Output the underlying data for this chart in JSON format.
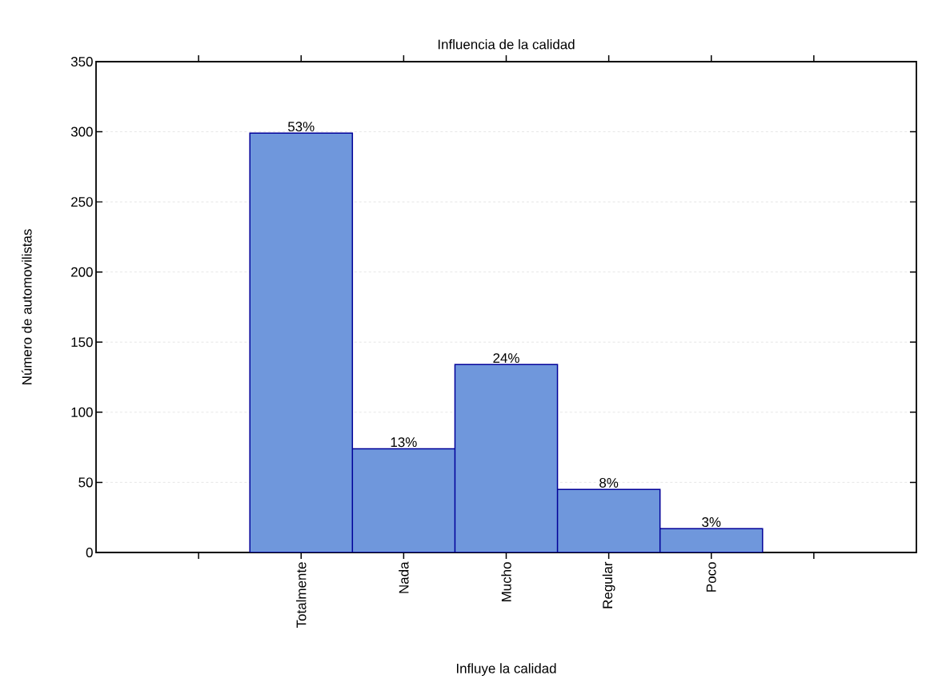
{
  "chart_data": {
    "type": "bar",
    "title": "Influencia de la calidad",
    "xlabel": "Influye la calidad",
    "ylabel": "Número de automovilistas",
    "categories": [
      null,
      "Totalmente",
      "Nada",
      "Mucho",
      "Regular",
      "Poco",
      null
    ],
    "values": [
      null,
      299,
      74,
      134,
      45,
      17,
      null
    ],
    "annotations": [
      {
        "text": "53%",
        "x": "Totalmente",
        "y": 299
      },
      {
        "text": "13%",
        "x": "Nada",
        "y": 74
      },
      {
        "text": "24%",
        "x": "Mucho",
        "y": 134
      },
      {
        "text": "8%",
        "x": "Regular",
        "y": 45
      },
      {
        "text": "3%",
        "x": "Poco",
        "y": 17
      }
    ],
    "color": "#6f97dc",
    "ylim": [
      0,
      350
    ],
    "yticks": [
      0,
      50,
      100,
      150,
      200,
      250,
      300,
      350
    ],
    "grid": "y"
  }
}
